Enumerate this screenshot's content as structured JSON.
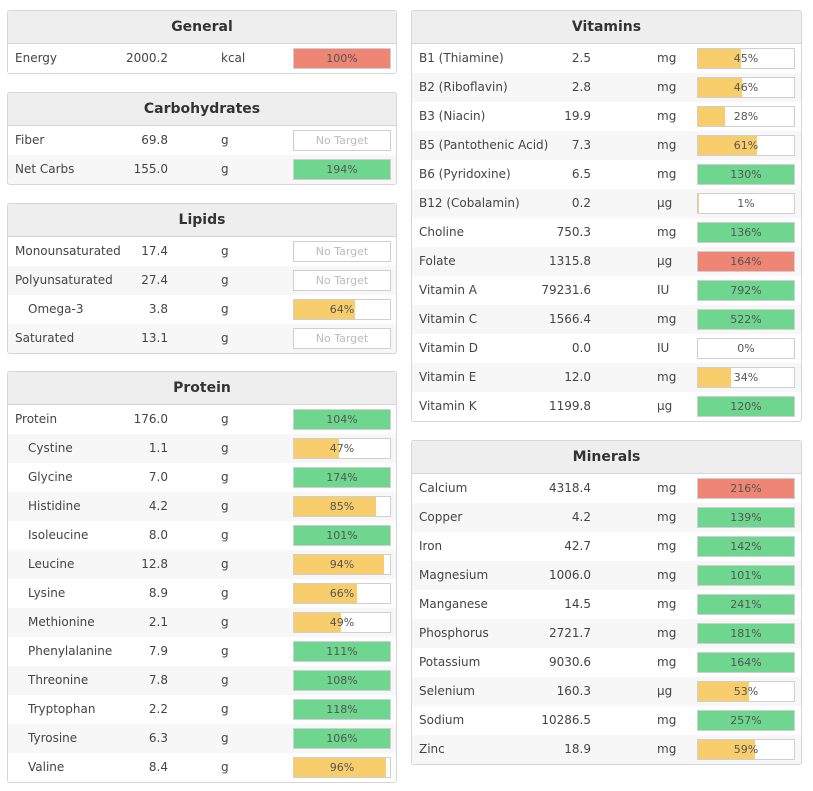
{
  "colors": {
    "green": "#6fd68f",
    "yellow": "#f8cd6c",
    "red": "#ef8574"
  },
  "sections": [
    {
      "title": "General",
      "rows": [
        {
          "name": "Energy",
          "amount": "2000.2",
          "unit": "kcal",
          "label": "100%",
          "fill": 1.0,
          "color": "red"
        }
      ]
    },
    {
      "title": "Carbohydrates",
      "rows": [
        {
          "name": "Fiber",
          "amount": "69.8",
          "unit": "g",
          "label": "No Target",
          "fill": 0,
          "color": "none"
        },
        {
          "name": "Net Carbs",
          "amount": "155.0",
          "unit": "g",
          "label": "194%",
          "fill": 1.0,
          "color": "green"
        }
      ]
    },
    {
      "title": "Lipids",
      "rows": [
        {
          "name": "Monounsaturated",
          "amount": "17.4",
          "unit": "g",
          "label": "No Target",
          "fill": 0,
          "color": "none"
        },
        {
          "name": "Polyunsaturated",
          "amount": "27.4",
          "unit": "g",
          "label": "No Target",
          "fill": 0,
          "color": "none"
        },
        {
          "name": "Omega-3",
          "amount": "3.8",
          "unit": "g",
          "label": "64%",
          "fill": 0.64,
          "color": "yellow",
          "indent": true
        },
        {
          "name": "Saturated",
          "amount": "13.1",
          "unit": "g",
          "label": "No Target",
          "fill": 0,
          "color": "none"
        }
      ]
    },
    {
      "title": "Protein",
      "rows": [
        {
          "name": "Protein",
          "amount": "176.0",
          "unit": "g",
          "label": "104%",
          "fill": 1.0,
          "color": "green"
        },
        {
          "name": "Cystine",
          "amount": "1.1",
          "unit": "g",
          "label": "47%",
          "fill": 0.47,
          "color": "yellow",
          "indent": true
        },
        {
          "name": "Glycine",
          "amount": "7.0",
          "unit": "g",
          "label": "174%",
          "fill": 1.0,
          "color": "green",
          "indent": true
        },
        {
          "name": "Histidine",
          "amount": "4.2",
          "unit": "g",
          "label": "85%",
          "fill": 0.85,
          "color": "yellow",
          "indent": true
        },
        {
          "name": "Isoleucine",
          "amount": "8.0",
          "unit": "g",
          "label": "101%",
          "fill": 1.0,
          "color": "green",
          "indent": true
        },
        {
          "name": "Leucine",
          "amount": "12.8",
          "unit": "g",
          "label": "94%",
          "fill": 0.94,
          "color": "yellow",
          "indent": true
        },
        {
          "name": "Lysine",
          "amount": "8.9",
          "unit": "g",
          "label": "66%",
          "fill": 0.66,
          "color": "yellow",
          "indent": true
        },
        {
          "name": "Methionine",
          "amount": "2.1",
          "unit": "g",
          "label": "49%",
          "fill": 0.49,
          "color": "yellow",
          "indent": true
        },
        {
          "name": "Phenylalanine",
          "amount": "7.9",
          "unit": "g",
          "label": "111%",
          "fill": 1.0,
          "color": "green",
          "indent": true
        },
        {
          "name": "Threonine",
          "amount": "7.8",
          "unit": "g",
          "label": "108%",
          "fill": 1.0,
          "color": "green",
          "indent": true
        },
        {
          "name": "Tryptophan",
          "amount": "2.2",
          "unit": "g",
          "label": "118%",
          "fill": 1.0,
          "color": "green",
          "indent": true
        },
        {
          "name": "Tyrosine",
          "amount": "6.3",
          "unit": "g",
          "label": "106%",
          "fill": 1.0,
          "color": "green",
          "indent": true
        },
        {
          "name": "Valine",
          "amount": "8.4",
          "unit": "g",
          "label": "96%",
          "fill": 0.96,
          "color": "yellow",
          "indent": true
        }
      ]
    },
    {
      "title": "Vitamins",
      "rows": [
        {
          "name": "B1 (Thiamine)",
          "amount": "2.5",
          "unit": "mg",
          "label": "45%",
          "fill": 0.45,
          "color": "yellow"
        },
        {
          "name": "B2 (Riboflavin)",
          "amount": "2.8",
          "unit": "mg",
          "label": "46%",
          "fill": 0.46,
          "color": "yellow"
        },
        {
          "name": "B3 (Niacin)",
          "amount": "19.9",
          "unit": "mg",
          "label": "28%",
          "fill": 0.28,
          "color": "yellow"
        },
        {
          "name": "B5 (Pantothenic Acid)",
          "amount": "7.3",
          "unit": "mg",
          "label": "61%",
          "fill": 0.61,
          "color": "yellow"
        },
        {
          "name": "B6 (Pyridoxine)",
          "amount": "6.5",
          "unit": "mg",
          "label": "130%",
          "fill": 1.0,
          "color": "green"
        },
        {
          "name": "B12 (Cobalamin)",
          "amount": "0.2",
          "unit": "µg",
          "label": "1%",
          "fill": 0.01,
          "color": "yellow"
        },
        {
          "name": "Choline",
          "amount": "750.3",
          "unit": "mg",
          "label": "136%",
          "fill": 1.0,
          "color": "green"
        },
        {
          "name": "Folate",
          "amount": "1315.8",
          "unit": "µg",
          "label": "164%",
          "fill": 1.0,
          "color": "red"
        },
        {
          "name": "Vitamin A",
          "amount": "79231.6",
          "unit": "IU",
          "label": "792%",
          "fill": 1.0,
          "color": "green"
        },
        {
          "name": "Vitamin C",
          "amount": "1566.4",
          "unit": "mg",
          "label": "522%",
          "fill": 1.0,
          "color": "green"
        },
        {
          "name": "Vitamin D",
          "amount": "0.0",
          "unit": "IU",
          "label": "0%",
          "fill": 0,
          "color": "yellow"
        },
        {
          "name": "Vitamin E",
          "amount": "12.0",
          "unit": "mg",
          "label": "34%",
          "fill": 0.34,
          "color": "yellow"
        },
        {
          "name": "Vitamin K",
          "amount": "1199.8",
          "unit": "µg",
          "label": "120%",
          "fill": 1.0,
          "color": "green"
        }
      ]
    },
    {
      "title": "Minerals",
      "rows": [
        {
          "name": "Calcium",
          "amount": "4318.4",
          "unit": "mg",
          "label": "216%",
          "fill": 1.0,
          "color": "red"
        },
        {
          "name": "Copper",
          "amount": "4.2",
          "unit": "mg",
          "label": "139%",
          "fill": 1.0,
          "color": "green"
        },
        {
          "name": "Iron",
          "amount": "42.7",
          "unit": "mg",
          "label": "142%",
          "fill": 1.0,
          "color": "green"
        },
        {
          "name": "Magnesium",
          "amount": "1006.0",
          "unit": "mg",
          "label": "101%",
          "fill": 1.0,
          "color": "green"
        },
        {
          "name": "Manganese",
          "amount": "14.5",
          "unit": "mg",
          "label": "241%",
          "fill": 1.0,
          "color": "green"
        },
        {
          "name": "Phosphorus",
          "amount": "2721.7",
          "unit": "mg",
          "label": "181%",
          "fill": 1.0,
          "color": "green"
        },
        {
          "name": "Potassium",
          "amount": "9030.6",
          "unit": "mg",
          "label": "164%",
          "fill": 1.0,
          "color": "green"
        },
        {
          "name": "Selenium",
          "amount": "160.3",
          "unit": "µg",
          "label": "53%",
          "fill": 0.53,
          "color": "yellow"
        },
        {
          "name": "Sodium",
          "amount": "10286.5",
          "unit": "mg",
          "label": "257%",
          "fill": 1.0,
          "color": "green"
        },
        {
          "name": "Zinc",
          "amount": "18.9",
          "unit": "mg",
          "label": "59%",
          "fill": 0.59,
          "color": "yellow"
        }
      ]
    }
  ]
}
